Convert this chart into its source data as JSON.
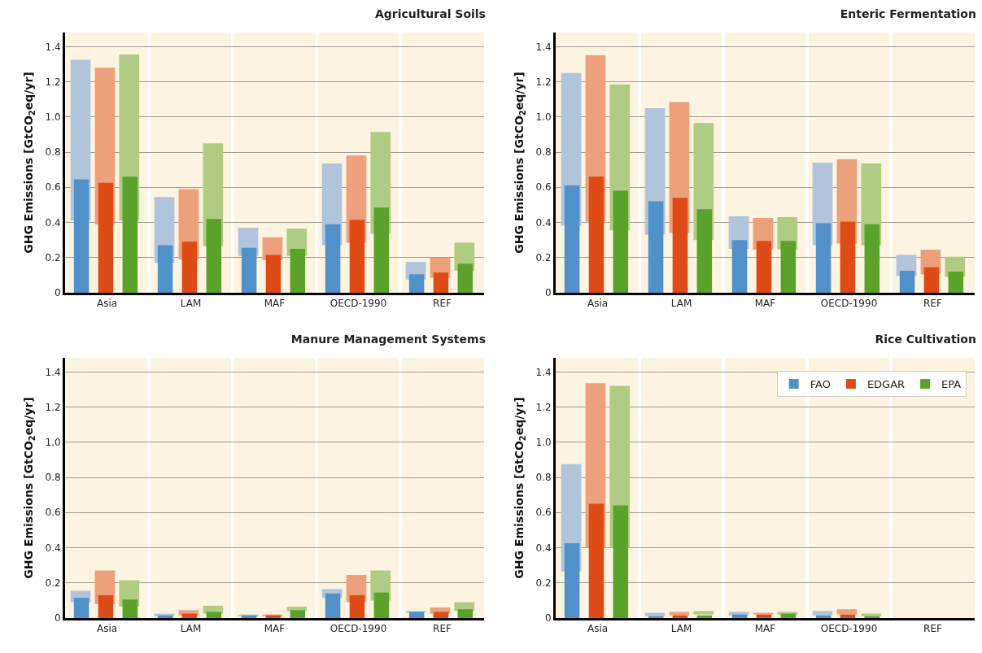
{
  "chart_data": [
    {
      "type": "bar",
      "title": "Agricultural Soils",
      "ylabel": "GHG Emissions [GtCO$_{2}$eq/yr]",
      "categories": [
        "Asia",
        "LAM",
        "MAF",
        "OECD-1990",
        "REF"
      ],
      "ylim": [
        0,
        1.48
      ],
      "yticks": [
        {
          "value": 0,
          "label": "0"
        },
        {
          "value": 0.2,
          "label": "0.2"
        },
        {
          "value": 0.4,
          "label": "0.4"
        },
        {
          "value": 0.6,
          "label": "0.6"
        },
        {
          "value": 0.8,
          "label": "0.8"
        },
        {
          "value": 1,
          "label": "1.0"
        },
        {
          "value": 1.2,
          "label": "1.2"
        },
        {
          "value": 1.4,
          "label": "1.4"
        }
      ],
      "grid": "y",
      "legend": false,
      "series": [
        {
          "color": "#b0c4dc",
          "base": [
            0.41,
            0.17,
            0.21,
            0.27,
            0.075
          ],
          "values": [
            0.915,
            0.375,
            0.16,
            0.465,
            0.1
          ]
        },
        {
          "color": "#eca17c",
          "base": [
            0.39,
            0.19,
            0.185,
            0.285,
            0.085
          ],
          "values": [
            0.89,
            0.4,
            0.13,
            0.495,
            0.115
          ]
        },
        {
          "color": "#b0cb84",
          "base": [
            0.41,
            0.265,
            0.21,
            0.335,
            0.125
          ],
          "values": [
            0.945,
            0.585,
            0.155,
            0.58,
            0.16
          ]
        },
        {
          "color": "#5091c9",
          "values": [
            0.645,
            0.27,
            0.255,
            0.39,
            0.105
          ]
        },
        {
          "color": "#df4b16",
          "values": [
            0.625,
            0.29,
            0.215,
            0.415,
            0.115
          ]
        },
        {
          "color": "#5ba22a",
          "values": [
            0.66,
            0.42,
            0.25,
            0.485,
            0.165
          ]
        }
      ]
    },
    {
      "type": "bar",
      "title": "Enteric Fermentation",
      "ylabel": "GHG Emissions [GtCO$_{2}$eq/yr]",
      "categories": [
        "Asia",
        "LAM",
        "MAF",
        "OECD-1990",
        "REF"
      ],
      "ylim": [
        0,
        1.48
      ],
      "yticks": [
        {
          "value": 0,
          "label": "0"
        },
        {
          "value": 0.2,
          "label": "0.2"
        },
        {
          "value": 0.4,
          "label": "0.4"
        },
        {
          "value": 0.6,
          "label": "0.6"
        },
        {
          "value": 0.8,
          "label": "0.8"
        },
        {
          "value": 1,
          "label": "1.0"
        },
        {
          "value": 1.2,
          "label": "1.2"
        },
        {
          "value": 1.4,
          "label": "1.4"
        }
      ],
      "grid": "y",
      "legend": false,
      "series": [
        {
          "color": "#b0c4dc",
          "base": [
            0.38,
            0.33,
            0.25,
            0.27,
            0.095
          ],
          "values": [
            0.87,
            0.72,
            0.185,
            0.47,
            0.12
          ]
        },
        {
          "color": "#eca17c",
          "base": [
            0.405,
            0.34,
            0.245,
            0.28,
            0.105
          ],
          "values": [
            0.945,
            0.745,
            0.18,
            0.48,
            0.14
          ]
        },
        {
          "color": "#b0cb84",
          "base": [
            0.355,
            0.3,
            0.245,
            0.27,
            0.09
          ],
          "values": [
            0.83,
            0.665,
            0.185,
            0.465,
            0.115
          ]
        },
        {
          "color": "#5091c9",
          "values": [
            0.61,
            0.52,
            0.3,
            0.395,
            0.125
          ]
        },
        {
          "color": "#df4b16",
          "values": [
            0.66,
            0.54,
            0.295,
            0.405,
            0.145
          ]
        },
        {
          "color": "#5ba22a",
          "values": [
            0.58,
            0.475,
            0.295,
            0.39,
            0.12
          ]
        }
      ]
    },
    {
      "type": "bar",
      "title": "Manure Management Systems",
      "ylabel": "GHG Emissions [GtCO$_{2}$eq/yr]",
      "categories": [
        "Asia",
        "LAM",
        "MAF",
        "OECD-1990",
        "REF"
      ],
      "ylim": [
        0,
        1.48
      ],
      "yticks": [
        {
          "value": 0,
          "label": "0"
        },
        {
          "value": 0.2,
          "label": "0.2"
        },
        {
          "value": 0.4,
          "label": "0.4"
        },
        {
          "value": 0.6,
          "label": "0.6"
        },
        {
          "value": 0.8,
          "label": "0.8"
        },
        {
          "value": 1,
          "label": "1.0"
        },
        {
          "value": 1.2,
          "label": "1.2"
        },
        {
          "value": 1.4,
          "label": "1.4"
        }
      ],
      "grid": "y",
      "legend": false,
      "series": [
        {
          "color": "#b0c4dc",
          "base": [
            0.09,
            0.01,
            0.01,
            0.115,
            0.03
          ],
          "values": [
            0.065,
            0.015,
            0.01,
            0.05,
            0.01
          ]
        },
        {
          "color": "#eca17c",
          "base": [
            0.08,
            0.015,
            0.01,
            0.09,
            0.025
          ],
          "values": [
            0.19,
            0.03,
            0.01,
            0.155,
            0.035
          ]
        },
        {
          "color": "#b0cb84",
          "base": [
            0.065,
            0.025,
            0.04,
            0.1,
            0.04
          ],
          "values": [
            0.15,
            0.045,
            0.025,
            0.17,
            0.05
          ]
        },
        {
          "color": "#5091c9",
          "values": [
            0.115,
            0.015,
            0.015,
            0.14,
            0.035
          ]
        },
        {
          "color": "#df4b16",
          "values": [
            0.13,
            0.025,
            0.015,
            0.13,
            0.035
          ]
        },
        {
          "color": "#5ba22a",
          "values": [
            0.105,
            0.035,
            0.045,
            0.145,
            0.05
          ]
        }
      ]
    },
    {
      "type": "bar",
      "title": "Rice Cultivation",
      "ylabel": "GHG Emissions [GtCO$_{2}$eq/yr]",
      "categories": [
        "Asia",
        "LAM",
        "MAF",
        "OECD-1990",
        "REF"
      ],
      "ylim": [
        0,
        1.48
      ],
      "yticks": [
        {
          "value": 0,
          "label": "0"
        },
        {
          "value": 0.2,
          "label": "0.2"
        },
        {
          "value": 0.4,
          "label": "0.4"
        },
        {
          "value": 0.6,
          "label": "0.6"
        },
        {
          "value": 0.8,
          "label": "0.8"
        },
        {
          "value": 1,
          "label": "1.0"
        },
        {
          "value": 1.2,
          "label": "1.2"
        },
        {
          "value": 1.4,
          "label": "1.4"
        }
      ],
      "grid": "y",
      "legend": "top right",
      "series": [
        {
          "color": "#b0c4dc",
          "base": [
            0.265,
            0.01,
            0.015,
            0.015,
            null
          ],
          "values": [
            0.61,
            0.02,
            0.02,
            0.025,
            null
          ]
        },
        {
          "color": "#eca17c",
          "base": [
            0.4,
            0.015,
            0.02,
            0.02,
            null
          ],
          "values": [
            0.935,
            0.02,
            0.01,
            0.03,
            null
          ]
        },
        {
          "color": "#b0cb84",
          "base": [
            0.4,
            0.02,
            0.02,
            0.01,
            null
          ],
          "values": [
            0.92,
            0.02,
            0.015,
            0.015,
            null
          ]
        },
        {
          "name": "FAO",
          "color": "#5091c9",
          "values": [
            0.425,
            0.01,
            0.02,
            0.015,
            null
          ]
        },
        {
          "name": "EDGAR",
          "color": "#df4b16",
          "values": [
            0.65,
            0.015,
            0.02,
            0.02,
            null
          ]
        },
        {
          "name": "EPA",
          "color": "#5ba22a",
          "values": [
            0.64,
            0.015,
            0.025,
            0.01,
            null
          ]
        }
      ]
    }
  ]
}
